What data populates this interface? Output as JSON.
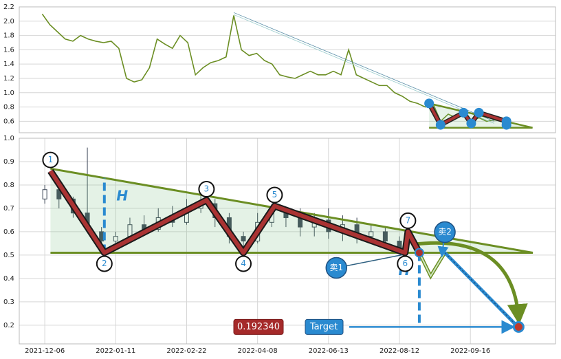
{
  "chart_data": [
    {
      "type": "line",
      "color": "#6b8e23",
      "values": [
        2.1,
        1.95,
        1.85,
        1.75,
        1.72,
        1.8,
        1.75,
        1.72,
        1.7,
        1.72,
        1.62,
        1.2,
        1.15,
        1.18,
        1.35,
        1.75,
        1.68,
        1.62,
        1.8,
        1.7,
        1.25,
        1.35,
        1.42,
        1.45,
        1.5,
        2.08,
        1.6,
        1.52,
        1.55,
        1.45,
        1.4,
        1.25,
        1.22,
        1.2,
        1.25,
        1.3,
        1.25,
        1.25,
        1.3,
        1.25,
        1.6,
        1.25,
        1.2,
        1.15,
        1.1,
        1.1,
        1.0,
        0.95,
        0.88,
        0.85,
        0.8,
        0.85,
        0.6,
        0.7,
        0.65,
        0.7,
        0.6,
        0.65,
        0.6,
        0.62,
        0.6
      ],
      "xlim": [
        -3,
        67
      ],
      "ylim": [
        0.44,
        2.2
      ],
      "yticks": [
        0.6,
        0.8,
        {
          "value": 1.0,
          "label": "1.0"
        },
        1.2,
        1.4,
        1.6,
        1.8,
        {
          "value": 2.0,
          "label": "2.0"
        },
        2.2
      ],
      "grid": true,
      "trendline": {
        "x": [
          25,
          59
        ],
        "y": [
          2.12,
          0.6
        ]
      },
      "triangle": {
        "x": [
          50.5,
          64,
          50.5
        ],
        "y": [
          0.85,
          0.51,
          0.51
        ]
      },
      "pattern": {
        "x": [
          50.5,
          52,
          55,
          56,
          57,
          60.6,
          60.6
        ],
        "y": [
          0.85,
          0.55,
          0.72,
          0.57,
          0.72,
          0.6,
          0.55
        ]
      }
    },
    {
      "type": "candlestick",
      "xlim": [
        -9,
        180
      ],
      "ylim": [
        0.12,
        1.0
      ],
      "xticks": [
        {
          "value": 0,
          "label": "2021-12-06"
        },
        {
          "value": 25,
          "label": "2022-01-11"
        },
        {
          "value": 50,
          "label": "2022-02-22"
        },
        {
          "value": 75,
          "label": "2022-04-08"
        },
        {
          "value": 100,
          "label": "2022-06-13"
        },
        {
          "value": 125,
          "label": "2022-08-12"
        },
        {
          "value": 150,
          "label": "2022-09-16"
        }
      ],
      "yticks": [
        0.2,
        0.3,
        0.4,
        0.5,
        0.6,
        0.7,
        0.8,
        0.9,
        {
          "value": 1.0,
          "label": "1.0"
        }
      ],
      "grid": true,
      "candles": {
        "x": [
          0,
          5,
          10,
          15,
          20,
          25,
          30,
          35,
          40,
          45,
          50,
          55,
          60,
          65,
          70,
          75,
          80,
          85,
          90,
          95,
          100,
          105,
          110,
          115,
          120,
          125
        ],
        "open": [
          0.74,
          0.78,
          0.74,
          0.68,
          0.6,
          0.56,
          0.58,
          0.63,
          0.61,
          0.66,
          0.64,
          0.7,
          0.72,
          0.66,
          0.58,
          0.56,
          0.64,
          0.68,
          0.66,
          0.62,
          0.65,
          0.6,
          0.63,
          0.58,
          0.6,
          0.56
        ],
        "close": [
          0.78,
          0.74,
          0.68,
          0.62,
          0.56,
          0.58,
          0.63,
          0.61,
          0.66,
          0.64,
          0.7,
          0.72,
          0.66,
          0.58,
          0.56,
          0.64,
          0.68,
          0.66,
          0.62,
          0.65,
          0.6,
          0.63,
          0.58,
          0.6,
          0.56,
          0.53
        ],
        "high": [
          0.8,
          0.79,
          0.75,
          0.96,
          0.62,
          0.6,
          0.66,
          0.67,
          0.7,
          0.71,
          0.74,
          0.76,
          0.74,
          0.68,
          0.6,
          0.68,
          0.72,
          0.7,
          0.7,
          0.68,
          0.7,
          0.67,
          0.66,
          0.63,
          0.62,
          0.58
        ],
        "low": [
          0.72,
          0.7,
          0.66,
          0.6,
          0.53,
          0.54,
          0.57,
          0.59,
          0.6,
          0.62,
          0.63,
          0.68,
          0.62,
          0.55,
          0.53,
          0.55,
          0.62,
          0.62,
          0.58,
          0.58,
          0.57,
          0.56,
          0.55,
          0.55,
          0.53,
          0.51
        ]
      },
      "triangle": {
        "x": [
          2,
          172,
          2
        ],
        "y": [
          0.87,
          0.51,
          0.51
        ]
      },
      "pattern": {
        "x": [
          2,
          21,
          57,
          70,
          81,
          127,
          128,
          132
        ],
        "y": [
          0.86,
          0.51,
          0.735,
          0.51,
          0.71,
          0.51,
          0.6,
          0.51
        ],
        "labels": [
          "1",
          "2",
          "3",
          "4",
          "5",
          "6",
          "7",
          null
        ]
      },
      "projection": {
        "x": [
          132,
          136,
          141,
          167
        ],
        "y": [
          0.51,
          0.41,
          0.51,
          0.19
        ]
      },
      "height_lines": [
        {
          "x": 21,
          "y": [
            0.51,
            0.83
          ]
        },
        {
          "x": 132,
          "y": [
            0.51,
            0.19
          ]
        }
      ],
      "h_label": "H",
      "sell": [
        {
          "label": "卖1",
          "x": 127,
          "y": 0.51
        },
        {
          "label": "卖2",
          "x": 141,
          "y": 0.51
        }
      ],
      "target": {
        "value": 0.19234,
        "label": "0.192340",
        "button": "Target"
      }
    }
  ]
}
